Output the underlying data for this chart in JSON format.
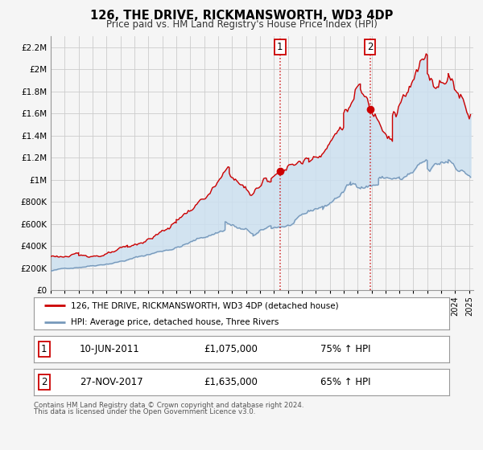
{
  "title": "126, THE DRIVE, RICKMANSWORTH, WD3 4DP",
  "subtitle": "Price paid vs. HM Land Registry's House Price Index (HPI)",
  "legend_line1": "126, THE DRIVE, RICKMANSWORTH, WD3 4DP (detached house)",
  "legend_line2": "HPI: Average price, detached house, Three Rivers",
  "annotation1_label": "1",
  "annotation1_date": "10-JUN-2011",
  "annotation1_price": "£1,075,000",
  "annotation1_hpi": "75% ↑ HPI",
  "annotation2_label": "2",
  "annotation2_date": "27-NOV-2017",
  "annotation2_price": "£1,635,000",
  "annotation2_hpi": "65% ↑ HPI",
  "footnote1": "Contains HM Land Registry data © Crown copyright and database right 2024.",
  "footnote2": "This data is licensed under the Open Government Licence v3.0.",
  "red_color": "#cc0000",
  "blue_color": "#7799bb",
  "fill_color": "#cce0f0",
  "grid_color": "#cccccc",
  "background_color": "#f5f5f5",
  "ylim": [
    0,
    2300000
  ],
  "xlim_start": 1995.0,
  "xlim_end": 2025.3,
  "marker1_x": 2011.44,
  "marker1_y": 1075000,
  "marker2_x": 2017.9,
  "marker2_y": 1635000,
  "vline1_x": 2011.44,
  "vline2_x": 2017.9
}
